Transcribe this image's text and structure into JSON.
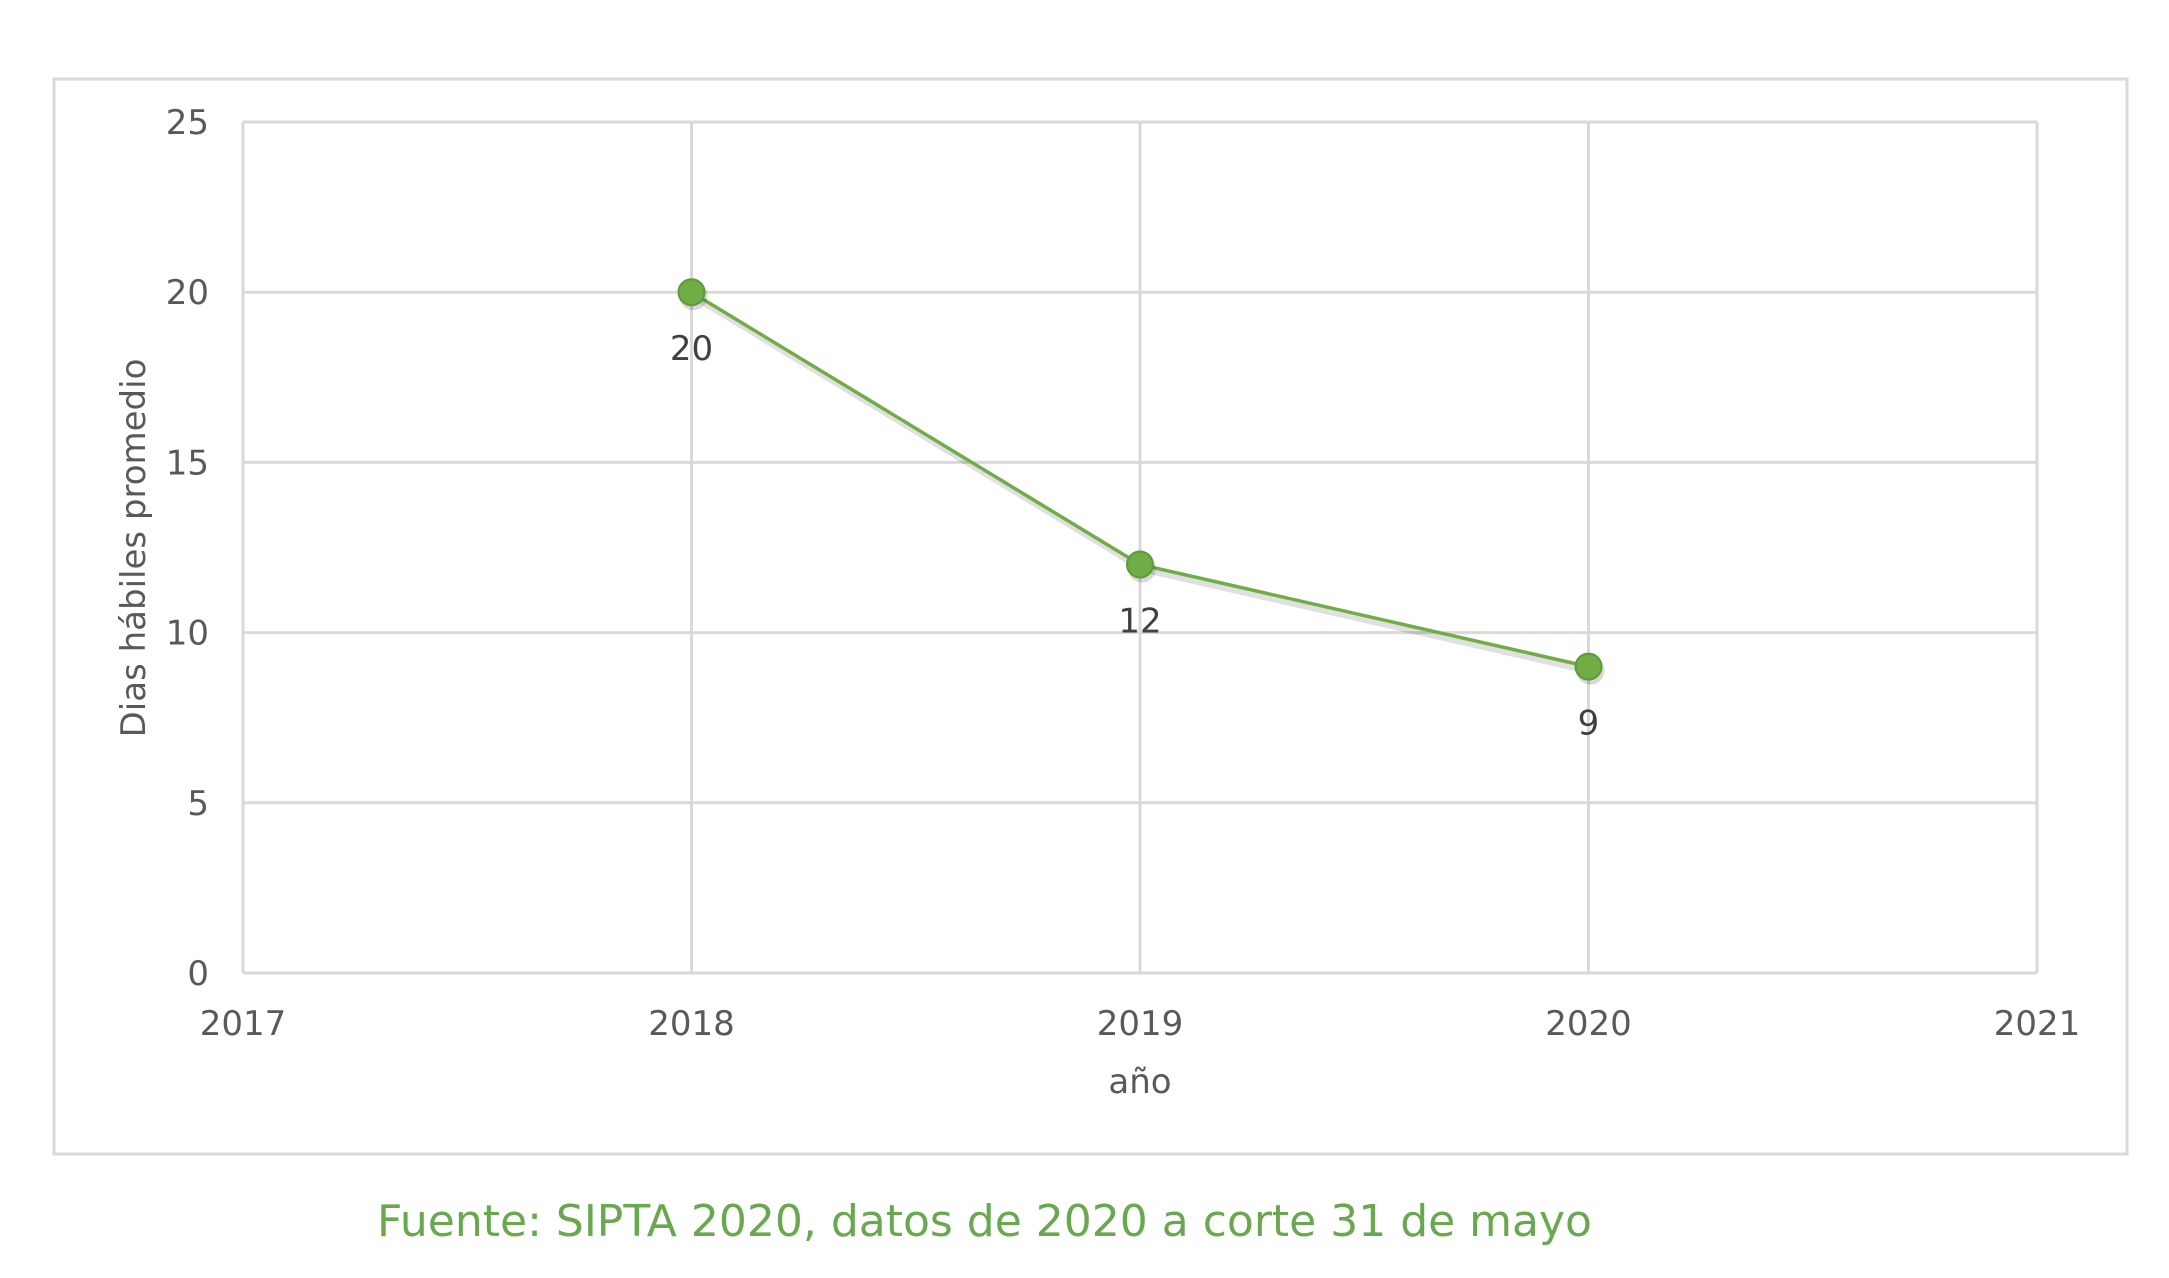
{
  "chart_data": {
    "type": "scatter",
    "mode": "lines+markers",
    "title": "",
    "xlabel": "año",
    "ylabel": "Dias hábiles promedio",
    "xlim": [
      2017,
      2021
    ],
    "ylim": [
      0,
      25
    ],
    "xticks": [
      2017,
      2018,
      2019,
      2020,
      2021
    ],
    "yticks": [
      0,
      5,
      10,
      15,
      20,
      25
    ],
    "grid": true,
    "legend": "none",
    "series": [
      {
        "name": "Dias hábiles promedio",
        "x": [
          2018,
          2019,
          2020
        ],
        "y": [
          20,
          12,
          9
        ],
        "labels": [
          "20",
          "12",
          "9"
        ],
        "color": "#70ad47"
      }
    ]
  },
  "footer": "Fuente: SIPTA 2020, datos de 2020 a corte 31 de mayo",
  "colors": {
    "grid": "#d9d9d9",
    "frame": "#d9d9d9",
    "footer": "#6aa84f"
  }
}
